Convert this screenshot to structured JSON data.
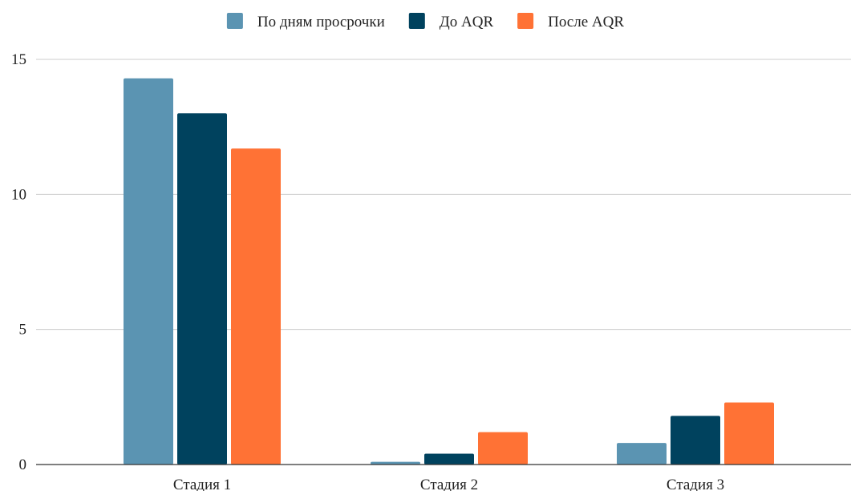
{
  "chart_data": {
    "type": "bar",
    "title": "",
    "xlabel": "",
    "ylabel": "",
    "categories": [
      "Стадия 1",
      "Стадия 2",
      "Стадия 3"
    ],
    "series": [
      {
        "name": "По дням просрочки",
        "color": "#5B94B2",
        "values": [
          14.3,
          0.1,
          0.8
        ]
      },
      {
        "name": "До AQR",
        "color": "#00425E",
        "values": [
          13.0,
          0.4,
          1.8
        ]
      },
      {
        "name": "После AQR",
        "color": "#FF7235",
        "values": [
          11.7,
          1.2,
          2.3
        ]
      }
    ],
    "ylim": [
      0,
      15
    ],
    "yticks": [
      0,
      5,
      10,
      15
    ],
    "grid": true,
    "legend_position": "top-center"
  }
}
